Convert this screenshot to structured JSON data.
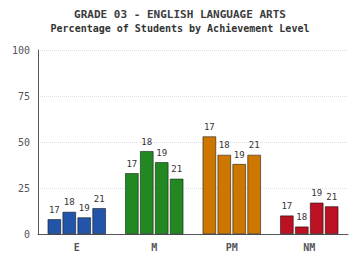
{
  "chart_data": {
    "type": "bar",
    "title": "GRADE 03 - ENGLISH LANGUAGE ARTS",
    "subtitle": "Percentage of Students by Achievement Level",
    "categories": [
      "E",
      "M",
      "PM",
      "NM"
    ],
    "series": [
      {
        "name": "17",
        "values": [
          8,
          33,
          53,
          10
        ],
        "colors": [
          "#2255aa",
          "#228822",
          "#cc7700",
          "#bb1122"
        ]
      },
      {
        "name": "18",
        "values": [
          12,
          45,
          43,
          4
        ],
        "colors": [
          "#2255aa",
          "#228822",
          "#cc7700",
          "#bb1122"
        ]
      },
      {
        "name": "19",
        "values": [
          9,
          39,
          38,
          17
        ],
        "colors": [
          "#2255aa",
          "#228822",
          "#cc7700",
          "#bb1122"
        ]
      },
      {
        "name": "21",
        "values": [
          14,
          30,
          43,
          15
        ],
        "colors": [
          "#2255aa",
          "#228822",
          "#cc7700",
          "#bb1122"
        ]
      }
    ],
    "ylim": [
      0,
      100
    ],
    "yticks": [
      0,
      25,
      50,
      75,
      100
    ],
    "grid": true
  }
}
